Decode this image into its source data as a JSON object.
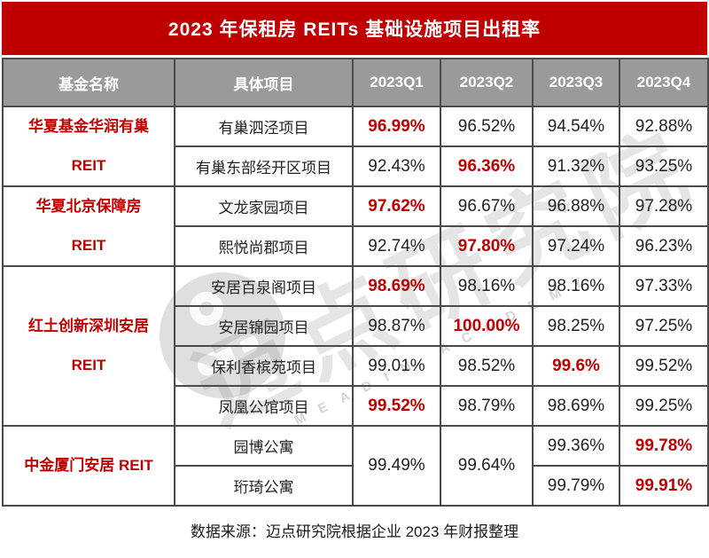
{
  "title": "2023 年保租房 REITs 基础设施项目出租率",
  "header": {
    "fund_col": "基金名称",
    "project_col": "具体项目",
    "quarters": [
      "2023Q1",
      "2023Q2",
      "2023Q3",
      "2023Q4"
    ]
  },
  "groups": [
    {
      "fund_lines": [
        "华夏基金华润有巢",
        "REIT"
      ],
      "rows": [
        {
          "project": "有巢泗泾项目",
          "cells": [
            {
              "text": "96.99%",
              "red": true
            },
            {
              "text": "96.52%"
            },
            {
              "text": "94.54%"
            },
            {
              "text": "92.88%"
            }
          ]
        },
        {
          "project": "有巢东部经开区项目",
          "cells": [
            {
              "text": "92.43%"
            },
            {
              "text": "96.36%",
              "red": true
            },
            {
              "text": "91.32%"
            },
            {
              "text": "93.25%"
            }
          ]
        }
      ]
    },
    {
      "fund_lines": [
        "华夏北京保障房",
        "REIT"
      ],
      "rows": [
        {
          "project": "文龙家园项目",
          "cells": [
            {
              "text": "97.62%",
              "red": true
            },
            {
              "text": "96.67%"
            },
            {
              "text": "96.88%"
            },
            {
              "text": "97.28%"
            }
          ]
        },
        {
          "project": "熙悦尚郡项目",
          "cells": [
            {
              "text": "92.74%"
            },
            {
              "text": "97.80%",
              "red": true
            },
            {
              "text": "97.24%"
            },
            {
              "text": "96.23%"
            }
          ]
        }
      ]
    },
    {
      "fund_lines": [
        "红土创新深圳安居",
        "REIT"
      ],
      "rows": [
        {
          "project": "安居百泉阁项目",
          "cells": [
            {
              "text": "98.69%",
              "red": true
            },
            {
              "text": "98.16%"
            },
            {
              "text": "98.16%"
            },
            {
              "text": "97.33%"
            }
          ]
        },
        {
          "project": "安居锦园项目",
          "cells": [
            {
              "text": "98.87%"
            },
            {
              "text": "100.00%",
              "red": true
            },
            {
              "text": "98.25%"
            },
            {
              "text": "97.25%"
            }
          ]
        },
        {
          "project": "保利香槟苑项目",
          "cells": [
            {
              "text": "99.01%"
            },
            {
              "text": "98.52%"
            },
            {
              "text": "99.6%",
              "red": true
            },
            {
              "text": "99.52%"
            }
          ]
        },
        {
          "project": "凤凰公馆项目",
          "cells": [
            {
              "text": "99.52%",
              "red": true
            },
            {
              "text": "98.79%"
            },
            {
              "text": "98.69%"
            },
            {
              "text": "99.25%"
            }
          ]
        }
      ]
    },
    {
      "fund_lines": [
        "中金厦门安居 REIT"
      ],
      "rows": [
        {
          "project": "园博公寓",
          "cells": [
            {
              "text": "99.49%",
              "rowspan": 2
            },
            {
              "text": "99.64%",
              "rowspan": 2
            },
            {
              "text": "99.36%"
            },
            {
              "text": "99.78%",
              "red": true
            }
          ]
        },
        {
          "project": "珩琦公寓",
          "cells": [
            {
              "text": "99.79%"
            },
            {
              "text": "99.91%",
              "red": true
            }
          ]
        }
      ]
    }
  ],
  "footer": "数据来源：迈点研究院根据企业 2023 年财报整理",
  "watermark": {
    "text": "迈点研究院",
    "letters": "MEADIN ACADEMY"
  },
  "colors": {
    "title_bg": "#C00000",
    "header_bg": "#9A9A9A",
    "red_text": "#C00000",
    "border": "#4A4A4A"
  }
}
